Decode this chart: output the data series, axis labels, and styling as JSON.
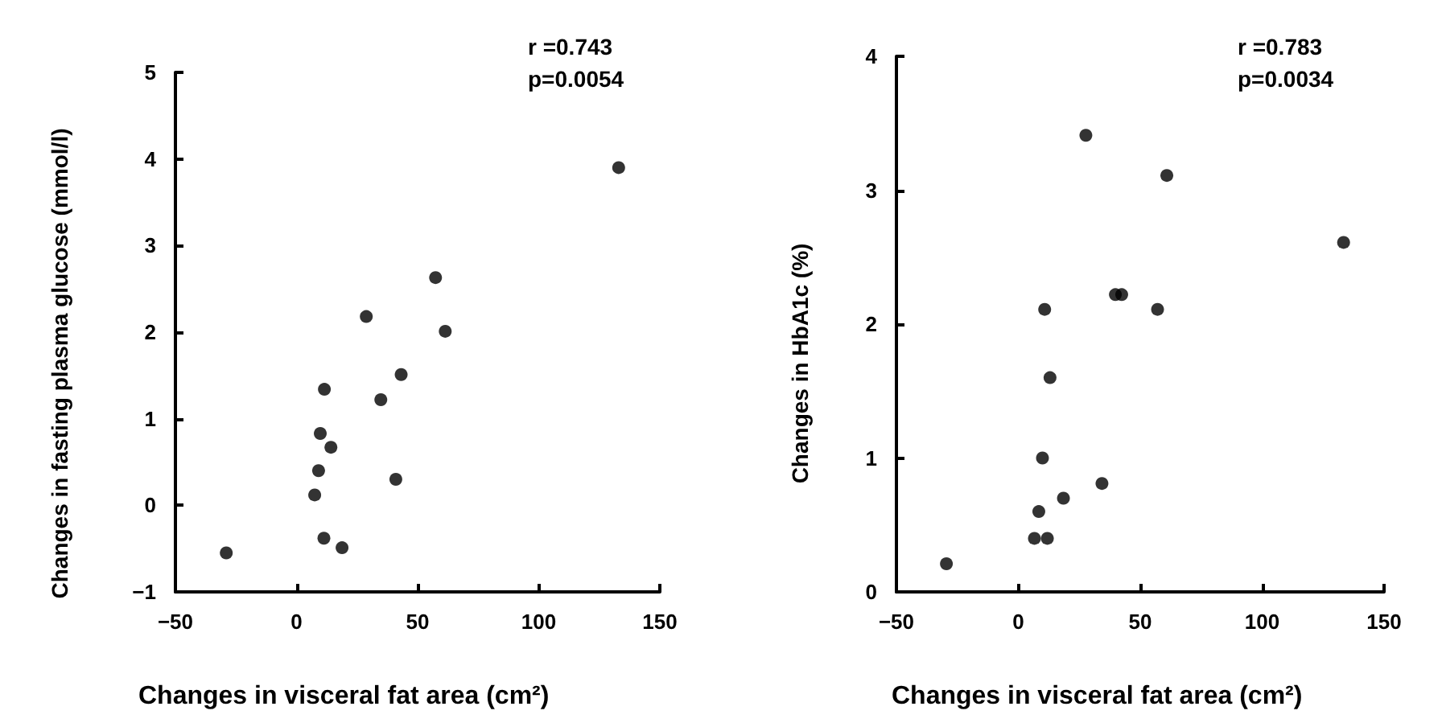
{
  "chart_data": [
    {
      "type": "scatter",
      "xlabel": "Changes in visceral fat area (cm²)",
      "ylabel": "Changes in fasting plasma glucose (mmol/l)",
      "annotations": [
        "r =0.743",
        "p=0.0054"
      ],
      "xlim": [
        -50,
        150
      ],
      "xticks": [
        -50,
        0,
        50,
        100,
        150
      ],
      "ylim": [
        -1,
        5
      ],
      "yticks": [
        -1,
        0,
        1,
        2,
        3,
        4,
        5
      ],
      "grid": false,
      "marker": "circle",
      "series": [
        {
          "color": "#000000",
          "x": [
            -29,
            133,
            57.4,
            28.8,
            61.4,
            43.2,
            34.8,
            11.5,
            9.8,
            14.2,
            9.1,
            41,
            7.5,
            11.3,
            18.8
          ],
          "values": [
            -0.55,
            3.9,
            2.63,
            2.18,
            2.01,
            1.51,
            1.22,
            1.34,
            0.83,
            0.67,
            0.4,
            0.3,
            0.12,
            -0.38,
            -0.49
          ]
        }
      ]
    },
    {
      "type": "scatter",
      "xlabel": "Changes in visceral fat area (cm²)",
      "ylabel": "Changes in HbA1c (%)",
      "annotations": [
        "r =0.783",
        "p=0.0034"
      ],
      "xlim": [
        -50,
        150
      ],
      "xticks": [
        -50,
        0,
        50,
        100,
        150
      ],
      "ylim": [
        0,
        4
      ],
      "yticks": [
        0,
        1,
        2,
        3,
        4
      ],
      "grid": false,
      "marker": "circle",
      "series": [
        {
          "color": "#000000",
          "x": [
            -29.5,
            27.7,
            60.9,
            133.4,
            10.8,
            39.8,
            42.4,
            57.1,
            13,
            9.9,
            34.3,
            18.5,
            8.4,
            6.6,
            11.9
          ],
          "values": [
            0.21,
            3.41,
            3.11,
            2.61,
            2.11,
            2.22,
            2.22,
            2.11,
            1.6,
            1,
            0.81,
            0.7,
            0.6,
            0.4,
            0.4
          ]
        }
      ]
    }
  ]
}
